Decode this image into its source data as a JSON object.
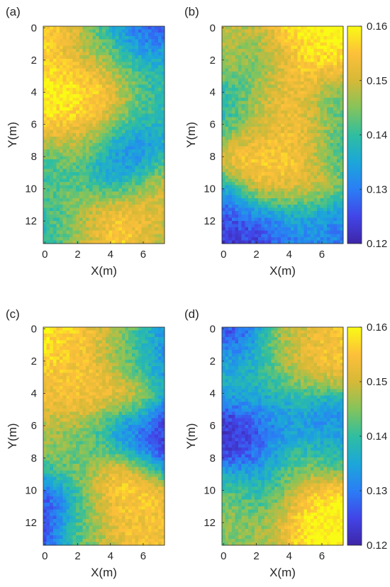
{
  "figure": {
    "xlabel": "X(m)",
    "ylabel": "Y(m)",
    "xticks": [
      0,
      2,
      4,
      6
    ],
    "yticks": [
      0,
      2,
      4,
      6,
      8,
      10,
      12
    ],
    "colorbar_ticks": [
      "0.12",
      "0.13",
      "0.14",
      "0.15",
      "0.16"
    ],
    "colormap": "parula",
    "colormap_stops": [
      "#3e26a8",
      "#4245e8",
      "#2a7ef5",
      "#1ca7d9",
      "#2fbea0",
      "#84c45b",
      "#d6b937",
      "#fdc03a",
      "#f9fb14"
    ]
  },
  "chart_data": [
    {
      "type": "heatmap",
      "panel_label": "(a)",
      "xlabel": "X(m)",
      "ylabel": "Y(m)",
      "xlim": [
        -0.1,
        7.3
      ],
      "ylim": [
        -0.1,
        13.4
      ],
      "clim": [
        0.12,
        0.16
      ],
      "colorbar": false,
      "blobs": [
        {
          "x": 0.3,
          "y": 0.2,
          "v": 0.157,
          "r": 1.3
        },
        {
          "x": 2.4,
          "y": 1.5,
          "v": 0.146,
          "r": 1.3
        },
        {
          "x": 4.6,
          "y": 0.8,
          "v": 0.131,
          "r": 1.5
        },
        {
          "x": 6.6,
          "y": 0.2,
          "v": 0.124,
          "r": 1.0
        },
        {
          "x": 6.9,
          "y": 2.4,
          "v": 0.136,
          "r": 1.4
        },
        {
          "x": 1.1,
          "y": 4.7,
          "v": 0.16,
          "r": 2.3
        },
        {
          "x": 3.0,
          "y": 4.3,
          "v": 0.16,
          "r": 2.1
        },
        {
          "x": 2.4,
          "y": 7.2,
          "v": 0.152,
          "r": 1.4
        },
        {
          "x": 6.0,
          "y": 4.6,
          "v": 0.137,
          "r": 1.5
        },
        {
          "x": 4.8,
          "y": 7.6,
          "v": 0.123,
          "r": 1.5
        },
        {
          "x": 3.8,
          "y": 8.6,
          "v": 0.128,
          "r": 1.4
        },
        {
          "x": 0.4,
          "y": 8.7,
          "v": 0.133,
          "r": 1.5
        },
        {
          "x": 1.3,
          "y": 10.5,
          "v": 0.148,
          "r": 1.6
        },
        {
          "x": 0.3,
          "y": 12.2,
          "v": 0.135,
          "r": 1.3
        },
        {
          "x": 6.5,
          "y": 10.2,
          "v": 0.151,
          "r": 1.6
        },
        {
          "x": 4.2,
          "y": 12.3,
          "v": 0.159,
          "r": 1.6
        },
        {
          "x": 2.2,
          "y": 12.6,
          "v": 0.146,
          "r": 1.2
        },
        {
          "x": 6.7,
          "y": 12.8,
          "v": 0.148,
          "r": 1.0
        }
      ]
    },
    {
      "type": "heatmap",
      "panel_label": "(b)",
      "xlabel": "X(m)",
      "ylabel": "Y(m)",
      "xlim": [
        -0.1,
        7.3
      ],
      "ylim": [
        -0.1,
        13.4
      ],
      "clim": [
        0.12,
        0.16
      ],
      "colorbar": true,
      "blobs": [
        {
          "x": 5.4,
          "y": 2.0,
          "v": 0.16,
          "r": 2.3
        },
        {
          "x": 0.4,
          "y": 1.5,
          "v": 0.15,
          "r": 1.4
        },
        {
          "x": 1.9,
          "y": 2.2,
          "v": 0.138,
          "r": 1.3
        },
        {
          "x": 0.2,
          "y": 4.8,
          "v": 0.134,
          "r": 1.4
        },
        {
          "x": 2.2,
          "y": 5.6,
          "v": 0.151,
          "r": 1.5
        },
        {
          "x": 4.3,
          "y": 6.5,
          "v": 0.153,
          "r": 1.5
        },
        {
          "x": 6.8,
          "y": 4.6,
          "v": 0.137,
          "r": 1.3
        },
        {
          "x": 1.8,
          "y": 9.2,
          "v": 0.158,
          "r": 1.5
        },
        {
          "x": 4.6,
          "y": 9.2,
          "v": 0.157,
          "r": 1.6
        },
        {
          "x": 6.8,
          "y": 8.0,
          "v": 0.137,
          "r": 1.2
        },
        {
          "x": 0.1,
          "y": 10.9,
          "v": 0.123,
          "r": 1.2
        },
        {
          "x": 2.0,
          "y": 12.9,
          "v": 0.122,
          "r": 1.5
        },
        {
          "x": 4.2,
          "y": 12.0,
          "v": 0.133,
          "r": 1.5
        },
        {
          "x": 6.6,
          "y": 12.5,
          "v": 0.13,
          "r": 1.2
        },
        {
          "x": 3.6,
          "y": 3.0,
          "v": 0.151,
          "r": 1.2
        }
      ]
    },
    {
      "type": "heatmap",
      "panel_label": "(c)",
      "xlabel": "X(m)",
      "ylabel": "Y(m)",
      "xlim": [
        -0.1,
        7.3
      ],
      "ylim": [
        -0.1,
        13.4
      ],
      "clim": [
        0.12,
        0.16
      ],
      "colorbar": false,
      "blobs": [
        {
          "x": 0.6,
          "y": 0.8,
          "v": 0.159,
          "r": 1.5
        },
        {
          "x": 3.0,
          "y": 0.6,
          "v": 0.152,
          "r": 1.3
        },
        {
          "x": 5.0,
          "y": 1.2,
          "v": 0.145,
          "r": 1.2
        },
        {
          "x": 6.9,
          "y": 1.8,
          "v": 0.131,
          "r": 1.5
        },
        {
          "x": 1.0,
          "y": 3.5,
          "v": 0.152,
          "r": 1.3
        },
        {
          "x": 2.3,
          "y": 4.4,
          "v": 0.157,
          "r": 1.3
        },
        {
          "x": 4.8,
          "y": 4.2,
          "v": 0.155,
          "r": 1.3
        },
        {
          "x": 3.3,
          "y": 6.5,
          "v": 0.137,
          "r": 1.3
        },
        {
          "x": 5.0,
          "y": 6.3,
          "v": 0.125,
          "r": 1.0
        },
        {
          "x": 7.1,
          "y": 6.8,
          "v": 0.121,
          "r": 1.4
        },
        {
          "x": 0.5,
          "y": 7.0,
          "v": 0.147,
          "r": 1.3
        },
        {
          "x": 1.8,
          "y": 8.3,
          "v": 0.142,
          "r": 1.2
        },
        {
          "x": 4.3,
          "y": 9.6,
          "v": 0.158,
          "r": 1.8
        },
        {
          "x": 0.6,
          "y": 11.3,
          "v": 0.122,
          "r": 1.6
        },
        {
          "x": 2.6,
          "y": 12.1,
          "v": 0.15,
          "r": 1.3
        },
        {
          "x": 6.6,
          "y": 12.2,
          "v": 0.153,
          "r": 1.3
        }
      ]
    },
    {
      "type": "heatmap",
      "panel_label": "(d)",
      "xlabel": "X(m)",
      "ylabel": "Y(m)",
      "xlim": [
        -0.1,
        7.3
      ],
      "ylim": [
        -0.1,
        13.4
      ],
      "clim": [
        0.12,
        0.16
      ],
      "colorbar": true,
      "blobs": [
        {
          "x": 1.0,
          "y": 0.4,
          "v": 0.124,
          "r": 1.2
        },
        {
          "x": 3.4,
          "y": 0.8,
          "v": 0.146,
          "r": 1.3
        },
        {
          "x": 5.3,
          "y": 1.8,
          "v": 0.155,
          "r": 1.5
        },
        {
          "x": 0.4,
          "y": 2.6,
          "v": 0.137,
          "r": 1.2
        },
        {
          "x": 2.4,
          "y": 3.3,
          "v": 0.138,
          "r": 1.3
        },
        {
          "x": 4.6,
          "y": 4.6,
          "v": 0.144,
          "r": 1.4
        },
        {
          "x": 3.5,
          "y": 5.6,
          "v": 0.129,
          "r": 1.1
        },
        {
          "x": 5.7,
          "y": 5.6,
          "v": 0.125,
          "r": 1.1
        },
        {
          "x": 1.5,
          "y": 7.2,
          "v": 0.122,
          "r": 1.8
        },
        {
          "x": 4.6,
          "y": 7.8,
          "v": 0.142,
          "r": 1.4
        },
        {
          "x": 6.6,
          "y": 7.4,
          "v": 0.134,
          "r": 1.2
        },
        {
          "x": 0.4,
          "y": 10.6,
          "v": 0.147,
          "r": 1.3
        },
        {
          "x": 2.4,
          "y": 10.0,
          "v": 0.136,
          "r": 1.3
        },
        {
          "x": 5.4,
          "y": 11.0,
          "v": 0.16,
          "r": 2.0
        },
        {
          "x": 1.8,
          "y": 12.8,
          "v": 0.145,
          "r": 1.3
        }
      ]
    }
  ]
}
